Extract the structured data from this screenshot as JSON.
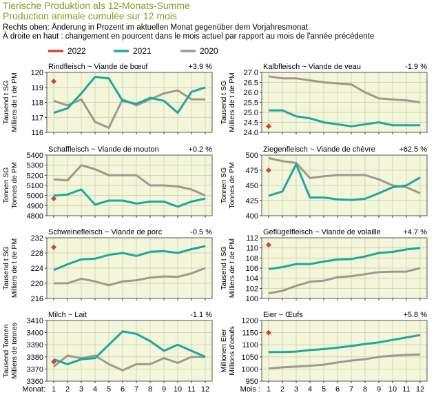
{
  "header": {
    "title_de": "Tierische Produktion als 12-Monats-Summe",
    "title_fr": "Production animale cumulée sur 12 mois",
    "note_de": "Rechts oben: Änderung in Prozent im aktuellen Monat gegenüber dem Vorjahresmonat",
    "note_fr": "À droite en haut : changement en pourcent dans le mois actuel par rapport au mois de l'année précédente"
  },
  "legend": [
    {
      "label": "2022",
      "color": "#cc4433"
    },
    {
      "label": "2021",
      "color": "#1aa8a0"
    },
    {
      "label": "2020",
      "color": "#a09890"
    }
  ],
  "colors": {
    "plot_bg": "#f3f6d8",
    "grid": "#c9cdb4"
  },
  "month_axis": {
    "label_left": "Monat:",
    "label_right": "Mois :",
    "ticks": [
      "1",
      "2",
      "3",
      "4",
      "5",
      "6",
      "7",
      "8",
      "9",
      "10",
      "11",
      "12"
    ]
  },
  "chart_data": [
    {
      "type": "line",
      "title": "Rindfleisch  ~  Viande de bœuf",
      "change": "+3.9 %",
      "ylabel": "Tausend t SG\nMilliers de t de PM",
      "ylim": [
        116,
        120
      ],
      "yticks": [
        116,
        117,
        118,
        119,
        120
      ],
      "series": [
        {
          "name": "2022",
          "values": [
            119.4
          ]
        },
        {
          "name": "2021",
          "values": [
            117.3,
            117.6,
            118.6,
            119.7,
            119.6,
            118.1,
            117.9,
            118.3,
            118.1,
            117.3,
            118.7,
            119.0
          ]
        },
        {
          "name": "2020",
          "values": [
            118.1,
            117.8,
            118.2,
            116.7,
            116.3,
            118.2,
            117.8,
            118.2,
            118.6,
            118.8,
            118.2,
            118.2
          ]
        }
      ]
    },
    {
      "type": "line",
      "title": "Kalbfleisch  ~  Viande de veau",
      "change": "-1.9 %",
      "ylabel": "Tausend t SG\nMilliers de t de PM",
      "ylim": [
        24.0,
        27.0
      ],
      "yticks": [
        24.0,
        24.5,
        25.0,
        25.5,
        26.0,
        26.5,
        27.0
      ],
      "series": [
        {
          "name": "2022",
          "values": [
            24.3
          ]
        },
        {
          "name": "2021",
          "values": [
            25.1,
            25.1,
            24.8,
            24.7,
            24.5,
            24.4,
            24.3,
            24.4,
            24.5,
            24.35,
            24.35,
            24.35
          ]
        },
        {
          "name": "2020",
          "values": [
            26.8,
            26.7,
            26.7,
            26.6,
            26.5,
            26.45,
            26.4,
            26.0,
            25.7,
            25.65,
            25.6,
            25.5
          ]
        }
      ]
    },
    {
      "type": "line",
      "title": "Schaffleisch  ~  Viande de mouton",
      "change": "+0.2 %",
      "ylabel": "Tonnen SG\nTonnes de PM",
      "ylim": [
        4800,
        5400
      ],
      "yticks": [
        4800,
        4900,
        5000,
        5100,
        5200,
        5300,
        5400
      ],
      "series": [
        {
          "name": "2022",
          "values": [
            4970
          ]
        },
        {
          "name": "2021",
          "values": [
            5000,
            5010,
            5060,
            4910,
            4950,
            4950,
            4920,
            4940,
            4940,
            4890,
            4940,
            4970
          ]
        },
        {
          "name": "2020",
          "values": [
            5160,
            5150,
            5300,
            5260,
            5200,
            5200,
            5200,
            5100,
            5100,
            5090,
            5060,
            5000
          ]
        }
      ]
    },
    {
      "type": "line",
      "title": "Ziegenfleisch  ~  Viande de chèvre",
      "change": "+62.5 %",
      "ylabel": "Tonnen SG\nTonnes de PM",
      "ylim": [
        400,
        500
      ],
      "yticks": [
        400,
        425,
        450,
        475,
        500
      ],
      "series": [
        {
          "name": "2022",
          "values": [
            475
          ]
        },
        {
          "name": "2021",
          "values": [
            433,
            440,
            485,
            430,
            430,
            427,
            426,
            428,
            437,
            447,
            450,
            463
          ]
        },
        {
          "name": "2020",
          "values": [
            495,
            490,
            487,
            462,
            465,
            467,
            467,
            467,
            460,
            450,
            447,
            437
          ]
        }
      ]
    },
    {
      "type": "line",
      "title": "Schweinefleisch  ~  Viande de porc",
      "change": "-0.5 %",
      "ylabel": "Tausend t SG\nMilliers de t de PM",
      "ylim": [
        216,
        232
      ],
      "yticks": [
        216,
        220,
        224,
        228,
        232
      ],
      "series": [
        {
          "name": "2022",
          "values": [
            229.5
          ]
        },
        {
          "name": "2021",
          "values": [
            223.5,
            225.0,
            226.3,
            226.5,
            227.5,
            228.0,
            227.2,
            228.3,
            228.5,
            228.0,
            229.0,
            229.8
          ]
        },
        {
          "name": "2020",
          "values": [
            220.0,
            220.0,
            221.2,
            220.5,
            219.5,
            220.5,
            220.8,
            221.5,
            221.8,
            221.7,
            222.6,
            224.0
          ]
        }
      ]
    },
    {
      "type": "line",
      "title": "Geflügelfleisch  ~  Viande de volaille",
      "change": "+4.7 %",
      "ylabel": "Tausend t SG\nMilliers de t de PM",
      "ylim": [
        100,
        112
      ],
      "yticks": [
        100,
        102,
        104,
        106,
        108,
        110,
        112
      ],
      "series": [
        {
          "name": "2022",
          "values": [
            110.6
          ]
        },
        {
          "name": "2021",
          "values": [
            105.8,
            106.2,
            106.8,
            106.8,
            107.3,
            107.7,
            107.8,
            108.3,
            109.0,
            109.2,
            109.7,
            110.0
          ]
        },
        {
          "name": "2020",
          "values": [
            101.0,
            101.5,
            102.5,
            103.3,
            103.5,
            104.2,
            104.4,
            104.8,
            105.2,
            105.3,
            105.3,
            106.0
          ]
        }
      ]
    },
    {
      "type": "line",
      "title": "Milch  ~  Lait",
      "change": "-1.1 %",
      "ylabel": "Tausend Tonnen\nMilliers de tonnes",
      "ylim": [
        3360,
        3410
      ],
      "yticks": [
        3360,
        3370,
        3380,
        3390,
        3400,
        3410
      ],
      "series": [
        {
          "name": "2022",
          "values": [
            3376
          ]
        },
        {
          "name": "2021",
          "values": [
            3378,
            3374,
            3378,
            3379,
            3390,
            3401,
            3399,
            3393,
            3385,
            3390,
            3385,
            3380
          ]
        },
        {
          "name": "2020",
          "values": [
            3372,
            3381,
            3379,
            3381,
            3374,
            3369,
            3374,
            3374,
            3379,
            3375,
            3380,
            3380
          ]
        }
      ]
    },
    {
      "type": "line",
      "title": "Eier  ~  Œufs",
      "change": "+5.8 %",
      "ylabel": "Millionen Eier\nMillions d'oeufs",
      "ylim": [
        950,
        1200
      ],
      "yticks": [
        950,
        1000,
        1050,
        1100,
        1150,
        1200
      ],
      "series": [
        {
          "name": "2022",
          "values": [
            1150
          ]
        },
        {
          "name": "2021",
          "values": [
            1070,
            1070,
            1072,
            1078,
            1082,
            1088,
            1095,
            1103,
            1110,
            1120,
            1130,
            1140
          ]
        },
        {
          "name": "2020",
          "values": [
            1002,
            1007,
            1010,
            1013,
            1018,
            1027,
            1035,
            1040,
            1050,
            1055,
            1058,
            1060
          ]
        }
      ]
    }
  ]
}
